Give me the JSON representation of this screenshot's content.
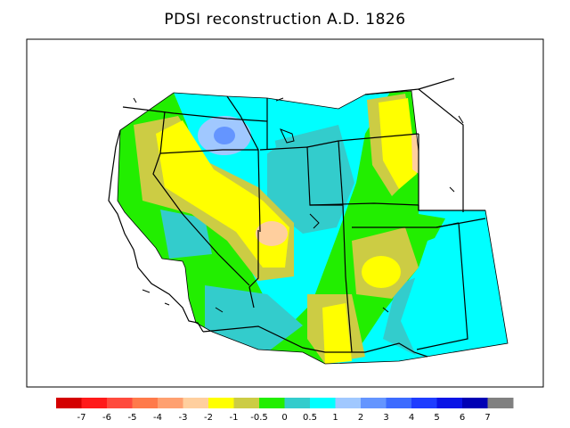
{
  "title": "PDSI reconstruction A.D. 1826",
  "legend": {
    "colors": [
      "#d40000",
      "#ff1a1a",
      "#ff4a3d",
      "#ff7a4a",
      "#ffa070",
      "#ffcf9e",
      "#ffff00",
      "#cccc44",
      "#22ee00",
      "#33cccc",
      "#00ffff",
      "#a0c8ff",
      "#6495ff",
      "#3c6bff",
      "#1e3cff",
      "#0a14e6",
      "#0000b4",
      "#808080"
    ],
    "labels": [
      "-7",
      "-6",
      "-5",
      "-4",
      "-3",
      "-2",
      "-1",
      "-0.5",
      "0",
      "0.5",
      "1",
      "2",
      "3",
      "4",
      "5",
      "6",
      "7"
    ]
  },
  "palette": {
    "lightblue": "#a0c8ff",
    "blue": "#6495ff",
    "cyan": "#00ffff",
    "teal": "#33cccc",
    "green": "#22ee00",
    "olive": "#cccc44",
    "yellow": "#ffff00",
    "peach": "#ffcf9e"
  }
}
